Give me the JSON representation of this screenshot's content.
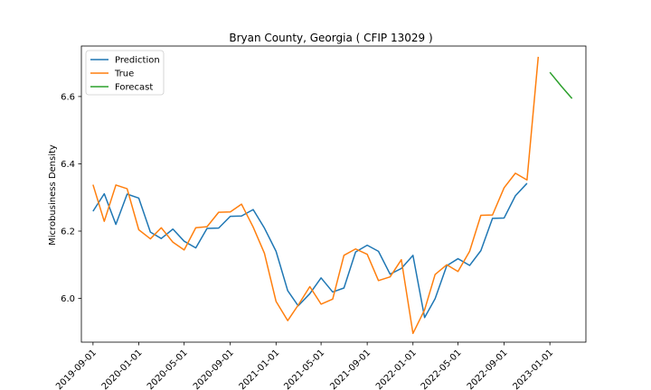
{
  "chart_data": {
    "type": "line",
    "title": "Bryan County, Georgia ( CFIP 13029 )",
    "xlabel": "",
    "ylabel": "Microbusiness Density",
    "ylim": [
      5.87,
      6.75
    ],
    "xlim": [
      "2019-08-01",
      "2023-04-07"
    ],
    "y_ticks": [
      6.0,
      6.2,
      6.4,
      6.6
    ],
    "y_tick_labels": [
      "6.0",
      "6.2",
      "6.4",
      "6.6"
    ],
    "x_ticks": [
      "2019-09-01",
      "2020-01-01",
      "2020-05-01",
      "2020-09-01",
      "2021-01-01",
      "2021-05-01",
      "2021-09-01",
      "2022-01-01",
      "2022-05-01",
      "2022-09-01",
      "2023-01-01"
    ],
    "grid": false,
    "legend_position": "top-left",
    "series": [
      {
        "name": "Prediction",
        "color": "#1f77b4",
        "x": [
          "2019-09-01",
          "2019-10-01",
          "2019-11-01",
          "2019-12-01",
          "2020-01-01",
          "2020-02-01",
          "2020-03-01",
          "2020-04-01",
          "2020-05-01",
          "2020-06-01",
          "2020-07-01",
          "2020-08-01",
          "2020-09-01",
          "2020-10-01",
          "2020-11-01",
          "2020-12-01",
          "2021-01-01",
          "2021-02-01",
          "2021-03-01",
          "2021-04-01",
          "2021-05-01",
          "2021-06-01",
          "2021-07-01",
          "2021-08-01",
          "2021-09-01",
          "2021-10-01",
          "2021-11-01",
          "2021-12-01",
          "2022-01-01",
          "2022-02-01",
          "2022-03-01",
          "2022-04-01",
          "2022-05-01",
          "2022-06-01",
          "2022-07-01",
          "2022-08-01",
          "2022-09-01",
          "2022-10-01",
          "2022-11-01"
        ],
        "values": [
          6.259,
          6.311,
          6.22,
          6.31,
          6.298,
          6.197,
          6.178,
          6.206,
          6.17,
          6.15,
          6.208,
          6.209,
          6.244,
          6.245,
          6.264,
          6.209,
          6.14,
          6.023,
          5.978,
          6.014,
          6.061,
          6.019,
          6.031,
          6.138,
          6.158,
          6.14,
          6.072,
          6.089,
          6.128,
          5.943,
          5.999,
          6.097,
          6.118,
          6.098,
          6.142,
          6.238,
          6.239,
          6.305,
          6.342
        ]
      },
      {
        "name": "True",
        "color": "#ff7f0e",
        "x": [
          "2019-09-01",
          "2019-10-01",
          "2019-11-01",
          "2019-12-01",
          "2020-01-01",
          "2020-02-01",
          "2020-03-01",
          "2020-04-01",
          "2020-05-01",
          "2020-06-01",
          "2020-07-01",
          "2020-08-01",
          "2020-09-01",
          "2020-10-01",
          "2020-11-01",
          "2020-12-01",
          "2021-01-01",
          "2021-02-01",
          "2021-03-01",
          "2021-04-01",
          "2021-05-01",
          "2021-06-01",
          "2021-07-01",
          "2021-08-01",
          "2021-09-01",
          "2021-10-01",
          "2021-11-01",
          "2021-12-01",
          "2022-01-01",
          "2022-02-01",
          "2022-03-01",
          "2022-04-01",
          "2022-05-01",
          "2022-06-01",
          "2022-07-01",
          "2022-08-01",
          "2022-09-01",
          "2022-10-01",
          "2022-11-01",
          "2022-12-01"
        ],
        "values": [
          6.338,
          6.229,
          6.337,
          6.326,
          6.204,
          6.177,
          6.21,
          6.167,
          6.144,
          6.21,
          6.213,
          6.256,
          6.257,
          6.28,
          6.212,
          6.134,
          5.991,
          5.934,
          5.98,
          6.035,
          5.983,
          5.998,
          6.128,
          6.147,
          6.131,
          6.053,
          6.064,
          6.115,
          5.896,
          5.966,
          6.071,
          6.1,
          6.08,
          6.14,
          6.247,
          6.248,
          6.329,
          6.372,
          6.352,
          6.718
        ]
      },
      {
        "name": "Forecast",
        "color": "#2ca02c",
        "x": [
          "2023-01-01",
          "2023-02-01",
          "2023-03-01"
        ],
        "values": [
          6.672,
          6.63,
          6.594
        ]
      }
    ]
  }
}
